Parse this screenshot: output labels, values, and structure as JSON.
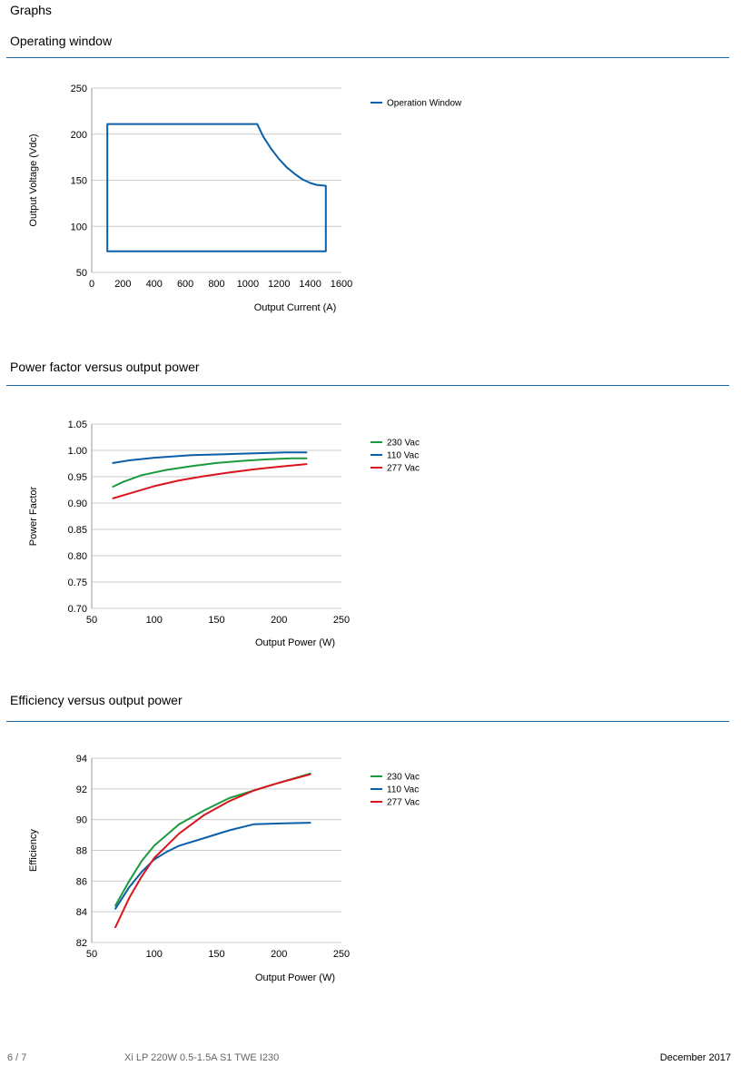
{
  "page": {
    "heading": "Graphs",
    "footer_page": "6 / 7",
    "footer_product": "Xi LP 220W 0.5-1.5A S1 TWE I230",
    "footer_date": "December 2017"
  },
  "sections": [
    {
      "title": "Operating window"
    },
    {
      "title": "Power factor versus output power"
    },
    {
      "title": "Efficiency versus output power"
    }
  ],
  "colors": {
    "green": "#1a9a3c",
    "blue": "#0a5fa8",
    "red": "#d9141f",
    "rule": "#1a6aa8",
    "grid": "#cccccc"
  },
  "chart_data": [
    {
      "type": "line",
      "title": "",
      "xlabel": "Output Current (A)",
      "ylabel": "Output Voltage (Vdc)",
      "xlim": [
        0,
        1600
      ],
      "ylim": [
        50,
        250
      ],
      "xticks": [
        0,
        200,
        400,
        600,
        800,
        1000,
        1200,
        1400,
        1600
      ],
      "yticks": [
        50,
        100,
        150,
        200,
        250
      ],
      "grid": "horizontal",
      "legend_position": "right",
      "series": [
        {
          "name": "Operation Window",
          "color": "#0a5fa8",
          "points": [
            [
              100,
              73
            ],
            [
              100,
              211
            ],
            [
              1060,
              211
            ],
            [
              1100,
              197
            ],
            [
              1150,
              184
            ],
            [
              1200,
              173
            ],
            [
              1250,
              164
            ],
            [
              1300,
              157
            ],
            [
              1350,
              151
            ],
            [
              1400,
              147
            ],
            [
              1440,
              145
            ],
            [
              1500,
              144
            ],
            [
              1500,
              73
            ],
            [
              100,
              73
            ]
          ]
        }
      ]
    },
    {
      "type": "line",
      "title": "",
      "xlabel": "Output Power (W)",
      "ylabel": "Power Factor",
      "xlim": [
        50,
        250
      ],
      "ylim": [
        0.7,
        1.05
      ],
      "xticks": [
        50,
        100,
        150,
        200,
        250
      ],
      "yticks": [
        "0.70",
        "0.75",
        "0.80",
        "0.85",
        "0.90",
        "0.95",
        "1.00",
        "1.05"
      ],
      "grid": "horizontal",
      "legend_position": "right",
      "series": [
        {
          "name": "230 Vac",
          "color": "#1a9a3c",
          "points": [
            [
              67,
              0.931
            ],
            [
              75,
              0.94
            ],
            [
              90,
              0.953
            ],
            [
              110,
              0.963
            ],
            [
              130,
              0.97
            ],
            [
              150,
              0.976
            ],
            [
              170,
              0.98
            ],
            [
              190,
              0.983
            ],
            [
              210,
              0.985
            ],
            [
              222,
              0.985
            ]
          ]
        },
        {
          "name": "110 Vac",
          "color": "#0a5fa8",
          "points": [
            [
              67,
              0.976
            ],
            [
              80,
              0.981
            ],
            [
              100,
              0.986
            ],
            [
              130,
              0.991
            ],
            [
              160,
              0.993
            ],
            [
              190,
              0.995
            ],
            [
              205,
              0.996
            ],
            [
              222,
              0.996
            ]
          ]
        },
        {
          "name": "277 Vac",
          "color": "#d9141f",
          "points": [
            [
              67,
              0.909
            ],
            [
              80,
              0.918
            ],
            [
              100,
              0.932
            ],
            [
              120,
              0.943
            ],
            [
              140,
              0.951
            ],
            [
              160,
              0.958
            ],
            [
              180,
              0.964
            ],
            [
              200,
              0.969
            ],
            [
              222,
              0.974
            ]
          ]
        }
      ]
    },
    {
      "type": "line",
      "title": "",
      "xlabel": "Output Power (W)",
      "ylabel": "Efficiency",
      "xlim": [
        50,
        250
      ],
      "ylim": [
        82,
        94
      ],
      "xticks": [
        50,
        100,
        150,
        200,
        250
      ],
      "yticks": [
        82,
        84,
        86,
        88,
        90,
        92,
        94
      ],
      "grid": "horizontal",
      "legend_position": "right",
      "series": [
        {
          "name": "230 Vac",
          "color": "#1a9a3c",
          "points": [
            [
              69,
              84.4
            ],
            [
              80,
              86.0
            ],
            [
              90,
              87.3
            ],
            [
              100,
              88.3
            ],
            [
              120,
              89.7
            ],
            [
              140,
              90.6
            ],
            [
              160,
              91.4
            ],
            [
              180,
              91.9
            ],
            [
              200,
              92.4
            ],
            [
              225,
              93.0
            ]
          ]
        },
        {
          "name": "110 Vac",
          "color": "#0a5fa8",
          "points": [
            [
              69,
              84.2
            ],
            [
              80,
              85.6
            ],
            [
              90,
              86.6
            ],
            [
              100,
              87.4
            ],
            [
              110,
              87.9
            ],
            [
              120,
              88.3
            ],
            [
              140,
              88.8
            ],
            [
              160,
              89.3
            ],
            [
              180,
              89.7
            ],
            [
              200,
              89.75
            ],
            [
              225,
              89.8
            ]
          ]
        },
        {
          "name": "277 Vac",
          "color": "#d9141f",
          "points": [
            [
              69,
              83.0
            ],
            [
              80,
              84.9
            ],
            [
              90,
              86.3
            ],
            [
              100,
              87.5
            ],
            [
              120,
              89.1
            ],
            [
              140,
              90.3
            ],
            [
              160,
              91.2
            ],
            [
              180,
              91.9
            ],
            [
              200,
              92.4
            ],
            [
              225,
              92.95
            ]
          ]
        }
      ]
    }
  ]
}
